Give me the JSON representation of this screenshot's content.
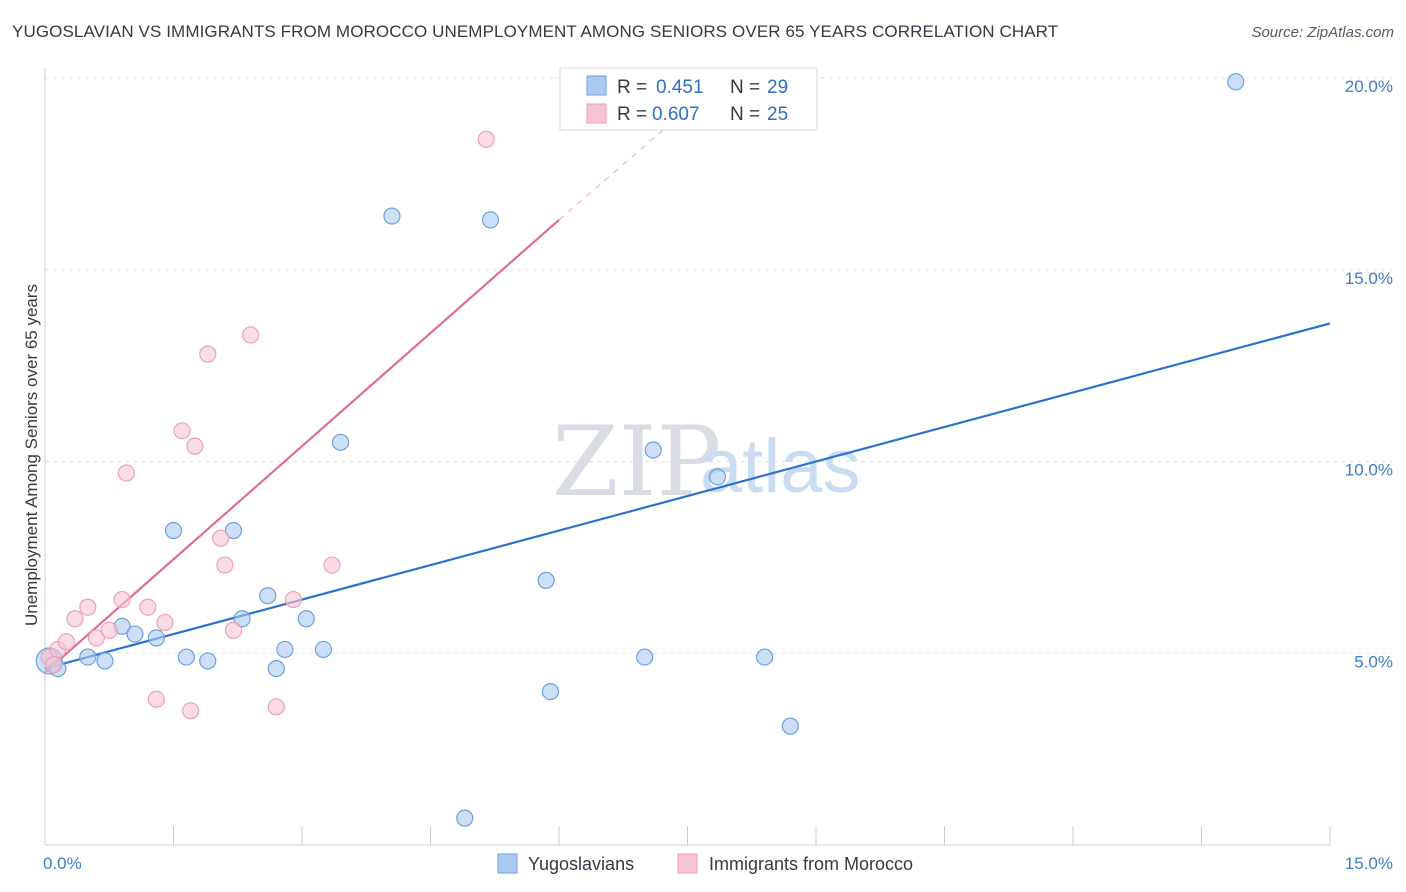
{
  "title": "YUGOSLAVIAN VS IMMIGRANTS FROM MOROCCO UNEMPLOYMENT AMONG SENIORS OVER 65 YEARS CORRELATION CHART",
  "source": "Source: ZipAtlas.com",
  "watermark": {
    "zip": "ZIP",
    "atlas": "atlas"
  },
  "legend": {
    "r_label": "R =",
    "n_label": "N =",
    "rows": [
      {
        "r": "0.451",
        "n": "29"
      },
      {
        "r": "0.607",
        "n": "25"
      }
    ]
  },
  "chart_data": {
    "type": "scatter",
    "ylabel": "Unemployment Among Seniors over 65 years",
    "xlim": [
      0,
      15
    ],
    "ylim": [
      0,
      20
    ],
    "x_tick_labels": [
      {
        "value": 0,
        "label": "0.0%"
      },
      {
        "value": 15,
        "label": "15.0%"
      }
    ],
    "y_tick_labels": [
      {
        "value": 5,
        "label": "5.0%"
      },
      {
        "value": 10,
        "label": "10.0%"
      },
      {
        "value": 15,
        "label": "15.0%"
      },
      {
        "value": 20,
        "label": "20.0%"
      }
    ],
    "grid": "horizontal dashed",
    "legend_position": "top-center",
    "series": [
      {
        "name": "Yugoslavians",
        "color": "#aac9f0",
        "edge": "#6d9fdc",
        "line_color": "#2b72cf",
        "trend": {
          "x": [
            0,
            15
          ],
          "y": [
            4.6,
            13.6
          ]
        },
        "points": [
          [
            0.05,
            4.8
          ],
          [
            0.15,
            4.6
          ],
          [
            0.5,
            4.9
          ],
          [
            0.7,
            4.8
          ],
          [
            0.9,
            5.7
          ],
          [
            1.05,
            5.5
          ],
          [
            1.3,
            5.4
          ],
          [
            1.5,
            8.2
          ],
          [
            1.65,
            4.9
          ],
          [
            1.9,
            4.8
          ],
          [
            2.2,
            8.2
          ],
          [
            2.3,
            5.9
          ],
          [
            2.6,
            6.5
          ],
          [
            2.7,
            4.6
          ],
          [
            2.8,
            5.1
          ],
          [
            3.05,
            5.9
          ],
          [
            3.25,
            5.1
          ],
          [
            3.45,
            10.5
          ],
          [
            4.05,
            16.4
          ],
          [
            4.9,
            0.7
          ],
          [
            5.2,
            16.3
          ],
          [
            5.85,
            6.9
          ],
          [
            5.9,
            4.0
          ],
          [
            7.0,
            4.9
          ],
          [
            7.1,
            10.3
          ],
          [
            7.85,
            9.6
          ],
          [
            8.4,
            4.9
          ],
          [
            8.7,
            3.1
          ],
          [
            13.9,
            19.9
          ]
        ]
      },
      {
        "name": "Immigrants from Morocco",
        "color": "#f7c4d4",
        "edge": "#e9a2ba",
        "line_color": "#e06b95",
        "trend": {
          "x": [
            0,
            6.0
          ],
          "y": [
            4.5,
            16.3
          ]
        },
        "trend_dashed": {
          "x": [
            6.0,
            7.4
          ],
          "y": [
            16.3,
            19.0
          ]
        },
        "points": [
          [
            0.05,
            4.9
          ],
          [
            0.15,
            5.1
          ],
          [
            0.25,
            5.3
          ],
          [
            0.35,
            5.9
          ],
          [
            0.5,
            6.2
          ],
          [
            0.6,
            5.4
          ],
          [
            0.75,
            5.6
          ],
          [
            0.9,
            6.4
          ],
          [
            0.95,
            9.7
          ],
          [
            1.2,
            6.2
          ],
          [
            1.3,
            3.8
          ],
          [
            1.4,
            5.8
          ],
          [
            1.6,
            10.8
          ],
          [
            1.75,
            10.4
          ],
          [
            1.7,
            3.5
          ],
          [
            1.9,
            12.8
          ],
          [
            2.05,
            8.0
          ],
          [
            2.1,
            7.3
          ],
          [
            2.2,
            5.6
          ],
          [
            2.4,
            13.3
          ],
          [
            2.7,
            3.6
          ],
          [
            2.9,
            6.4
          ],
          [
            3.35,
            7.3
          ],
          [
            5.15,
            18.4
          ],
          [
            0.1,
            4.7
          ]
        ]
      }
    ]
  }
}
